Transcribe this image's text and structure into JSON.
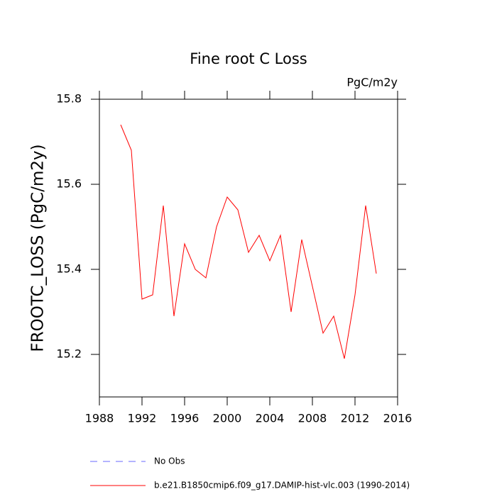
{
  "chart_data": {
    "type": "line",
    "title": "Fine root C Loss",
    "units": "PgC/m2y",
    "y_label": "FROOTC_LOSS  (PgC/m2y)",
    "x": [
      1990,
      1991,
      1992,
      1993,
      1994,
      1995,
      1996,
      1997,
      1998,
      1999,
      2000,
      2001,
      2002,
      2003,
      2004,
      2005,
      2006,
      2007,
      2008,
      2009,
      2010,
      2011,
      2012,
      2013,
      2014
    ],
    "series": [
      {
        "name": "b.e21.B1850cmip6.f09_g17.DAMIP-hist-vlc.003 (1990-2014)",
        "color": "#ff0000",
        "values": [
          15.74,
          15.68,
          15.33,
          15.34,
          15.55,
          15.29,
          15.46,
          15.4,
          15.38,
          15.5,
          15.57,
          15.54,
          15.44,
          15.48,
          15.42,
          15.48,
          15.3,
          15.47,
          15.36,
          15.25,
          15.29,
          15.19,
          15.34,
          15.55,
          15.39
        ]
      }
    ],
    "legend": [
      {
        "name": "No Obs",
        "color": "#6a6aff",
        "dashed": true
      }
    ],
    "xlim": [
      1988,
      2016
    ],
    "xticks": [
      1988,
      1992,
      1996,
      2000,
      2004,
      2008,
      2012,
      2016
    ],
    "ylim": [
      15.1,
      15.8
    ],
    "yticks": [
      15.2,
      15.4,
      15.6,
      15.8
    ]
  }
}
